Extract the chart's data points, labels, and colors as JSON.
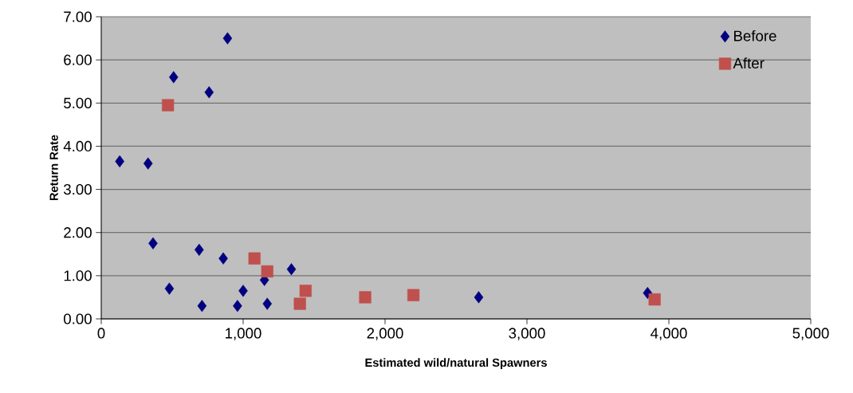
{
  "chart_data": {
    "type": "scatter",
    "xlabel": "Estimated wild/natural Spawners",
    "ylabel": "Return Rate",
    "series": [
      {
        "name": "Before",
        "color": "#000080",
        "marker": "diamond",
        "x": [
          130,
          330,
          510,
          760,
          890,
          365,
          690,
          860,
          480,
          710,
          960,
          1000,
          1150,
          1170,
          1340,
          2660,
          3850
        ],
        "values": [
          3.65,
          3.6,
          5.6,
          5.25,
          6.5,
          1.75,
          1.6,
          1.4,
          0.7,
          0.3,
          0.3,
          0.65,
          0.9,
          0.35,
          1.15,
          0.5,
          0.6
        ]
      },
      {
        "name": "After",
        "color": "#c0504d",
        "marker": "square",
        "x": [
          470,
          1080,
          1170,
          1440,
          1400,
          1860,
          2200,
          3900
        ],
        "values": [
          4.95,
          1.4,
          1.1,
          0.65,
          0.35,
          0.5,
          0.55,
          0.45
        ]
      }
    ],
    "xlim": [
      0,
      5000
    ],
    "xticks": [
      {
        "value": 0,
        "label": "0"
      },
      {
        "value": 1000,
        "label": "1,000"
      },
      {
        "value": 2000,
        "label": "2,000"
      },
      {
        "value": 3000,
        "label": "3,000"
      },
      {
        "value": 4000,
        "label": "4,000"
      },
      {
        "value": 5000,
        "label": "5,000"
      }
    ],
    "ylim": [
      0,
      7
    ],
    "yticks": [
      {
        "value": 0,
        "label": "0.00"
      },
      {
        "value": 1,
        "label": "1.00"
      },
      {
        "value": 2,
        "label": "2.00"
      },
      {
        "value": 3,
        "label": "3.00"
      },
      {
        "value": 4,
        "label": "4.00"
      },
      {
        "value": 5,
        "label": "5.00"
      },
      {
        "value": 6,
        "label": "6.00"
      },
      {
        "value": 7,
        "label": "7.00"
      }
    ],
    "grid": "y",
    "legend": "top right"
  }
}
